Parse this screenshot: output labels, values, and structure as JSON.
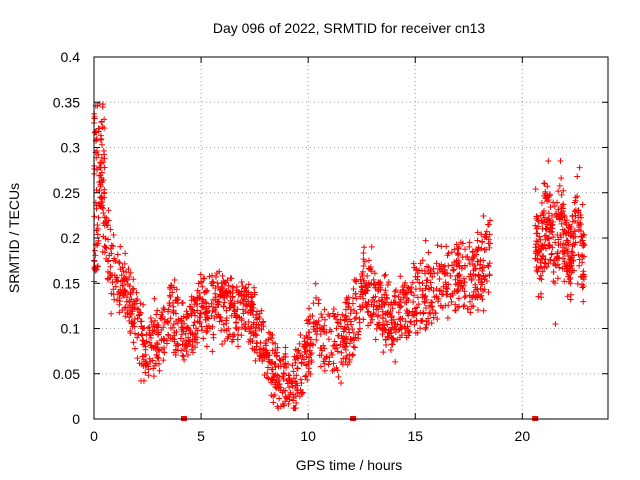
{
  "chart_data": {
    "type": "scatter",
    "title": "Day 096 of 2022, SRMTID for receiver cn13",
    "xlabel": "GPS time / hours",
    "ylabel": "SRMTID / TECUs",
    "xlim": [
      0,
      24
    ],
    "ylim": [
      0,
      0.4
    ],
    "xticks": [
      0,
      5,
      10,
      15,
      20
    ],
    "xtick_labels": [
      "0",
      "5",
      "10",
      "15",
      "20"
    ],
    "yticks": [
      0,
      0.05,
      0.1,
      0.15,
      0.2,
      0.25,
      0.3,
      0.35,
      0.4
    ],
    "ytick_labels": [
      "0",
      "0.05",
      "0.1",
      "0.15",
      "0.2",
      "0.25",
      "0.3",
      "0.35",
      "0.4"
    ],
    "grid": true,
    "marker": "plus",
    "marker_color": "#ff0000",
    "trend_x": [
      0,
      0.3,
      0.8,
      1.5,
      2.3,
      3.0,
      3.6,
      4.3,
      5.0,
      5.8,
      6.5,
      7.2,
      7.8,
      8.3,
      8.8,
      9.3,
      9.8,
      10.3,
      10.8,
      11.4,
      12.0,
      12.6,
      13.2,
      14.0,
      14.8,
      15.5,
      16.3,
      17.0,
      17.8,
      18.5
    ],
    "trend_y": [
      0.17,
      0.25,
      0.17,
      0.14,
      0.08,
      0.09,
      0.12,
      0.1,
      0.12,
      0.13,
      0.12,
      0.12,
      0.09,
      0.06,
      0.04,
      0.04,
      0.06,
      0.11,
      0.09,
      0.08,
      0.1,
      0.15,
      0.13,
      0.11,
      0.13,
      0.14,
      0.15,
      0.16,
      0.16,
      0.18
    ],
    "segments": [
      {
        "x_start": 0.0,
        "x_end": 18.5,
        "points": 1700
      },
      {
        "x_start": 20.6,
        "x_end": 22.9,
        "points": 330,
        "center_y": 0.2,
        "spread": 0.05
      }
    ],
    "zero_marks_x": [
      4.2,
      12.1,
      20.6
    ]
  }
}
